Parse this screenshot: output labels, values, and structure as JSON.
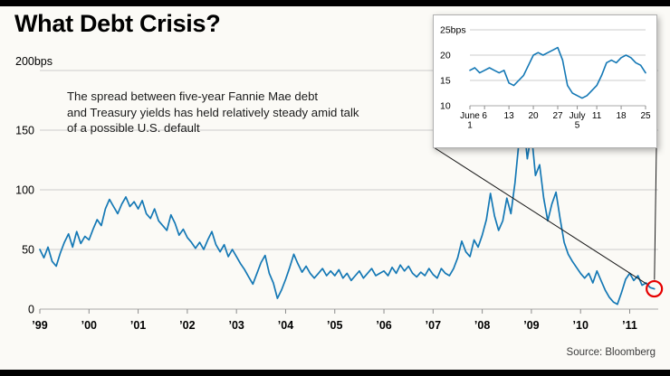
{
  "page": {
    "title": "What Debt Crisis?",
    "annotation": "The spread between five-year Fannie Mae debt\nand Treasury yields has held relatively steady amid talk\nof a possible U.S. default",
    "source": "Source: Bloomberg",
    "top_axis_unit": "200bps"
  },
  "colors": {
    "line": "#1478b5",
    "grid": "#cccccc",
    "axis": "#a8a8a8",
    "tick": "#8c8c8c",
    "text": "#000000",
    "highlight": "#e60000",
    "callout": "#1a1a1a"
  },
  "chart_data": [
    {
      "name": "main-spread-chart",
      "type": "line",
      "title": "Spread between five-year Fannie Mae debt and Treasury yields",
      "ylabel": "bps",
      "ylim": [
        0,
        200
      ],
      "yticks": [
        0,
        50,
        100,
        150,
        200
      ],
      "ytick_labels": [
        "0",
        "50",
        "100",
        "150",
        ""
      ],
      "xlim": [
        1999,
        2011.58
      ],
      "xticks": [
        1999,
        2000,
        2001,
        2002,
        2003,
        2004,
        2005,
        2006,
        2007,
        2008,
        2009,
        2010,
        2011
      ],
      "xtick_labels": [
        "’99",
        "’00",
        "’01",
        "’02",
        "’03",
        "’04",
        "’05",
        "’06",
        "’07",
        "’08",
        "’09",
        "’10",
        "’11"
      ],
      "x_start": 1999.0,
      "x_step": 0.083333,
      "values": [
        50,
        43,
        52,
        40,
        36,
        47,
        56,
        63,
        52,
        65,
        55,
        61,
        58,
        67,
        75,
        70,
        84,
        92,
        86,
        80,
        88,
        94,
        86,
        90,
        84,
        91,
        80,
        76,
        84,
        74,
        70,
        66,
        79,
        72,
        62,
        67,
        60,
        56,
        51,
        56,
        50,
        58,
        65,
        54,
        48,
        54,
        44,
        50,
        44,
        38,
        33,
        27,
        21,
        30,
        39,
        45,
        30,
        22,
        9,
        16,
        25,
        35,
        46,
        38,
        31,
        36,
        30,
        26,
        30,
        34,
        28,
        32,
        28,
        33,
        26,
        30,
        24,
        28,
        32,
        26,
        30,
        34,
        28,
        30,
        32,
        28,
        35,
        30,
        37,
        32,
        36,
        30,
        27,
        31,
        28,
        34,
        29,
        26,
        34,
        30,
        28,
        34,
        43,
        57,
        48,
        44,
        58,
        52,
        62,
        75,
        97,
        78,
        66,
        74,
        93,
        80,
        106,
        142,
        160,
        126,
        148,
        112,
        121,
        93,
        74,
        88,
        98,
        76,
        56,
        46,
        40,
        35,
        30,
        26,
        30,
        22,
        32,
        24,
        16,
        10,
        6,
        4,
        14,
        25,
        30,
        24,
        28,
        20,
        22,
        18,
        17
      ],
      "grid": true,
      "legend": "none"
    },
    {
      "name": "inset-june-july-detail",
      "type": "line",
      "title": "Detail: June 1 - July 25, 2011",
      "ylabel": "bps",
      "ylim": [
        10,
        25
      ],
      "yticks": [
        10,
        15,
        20,
        25
      ],
      "ytick_labels": [
        "10",
        "15",
        "20",
        "25bps"
      ],
      "xticks": [
        0,
        3,
        8,
        13,
        18,
        22,
        26,
        31,
        36
      ],
      "xtick_labels": [
        "June\n1",
        "6",
        "13",
        "20",
        "27",
        "July\n5",
        "11",
        "18",
        "25"
      ],
      "x_start": 0,
      "x_step": 1,
      "values": [
        17,
        17.5,
        16.5,
        17,
        17.5,
        17,
        16.5,
        17,
        14.5,
        14,
        15,
        16,
        18,
        20,
        20.5,
        20,
        20.5,
        21,
        21.5,
        19,
        14,
        12.5,
        12,
        11.5,
        12,
        13,
        14,
        16,
        18.5,
        19,
        18.5,
        19.5,
        20,
        19.5,
        18.5,
        18,
        16.5
      ],
      "grid": true,
      "legend": "none"
    }
  ]
}
